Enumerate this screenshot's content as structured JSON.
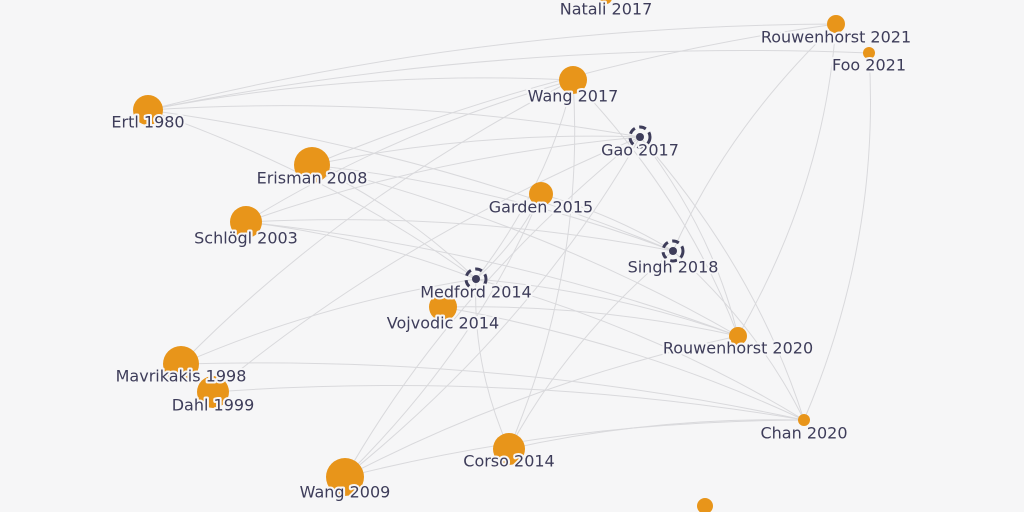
{
  "nodes": [
    {
      "label": "Natali 2017"
    },
    {
      "label": "Rouwenhorst 2021"
    },
    {
      "label": "Foo 2021"
    },
    {
      "label": "Wang 2017"
    },
    {
      "label": "Ertl 1980"
    },
    {
      "label": "Gao 2017"
    },
    {
      "label": "Erisman 2008"
    },
    {
      "label": "Garden 2015"
    },
    {
      "label": "Schlögl 2003"
    },
    {
      "label": "Singh 2018"
    },
    {
      "label": "Medford 2014"
    },
    {
      "label": "Vojvodic 2014"
    },
    {
      "label": "Rouwenhorst 2020"
    },
    {
      "label": "Mavrikakis 1998"
    },
    {
      "label": "Dahl 1999"
    },
    {
      "label": "Chan 2020"
    },
    {
      "label": "Corso 2014"
    },
    {
      "label": "Wang 2009"
    }
  ]
}
